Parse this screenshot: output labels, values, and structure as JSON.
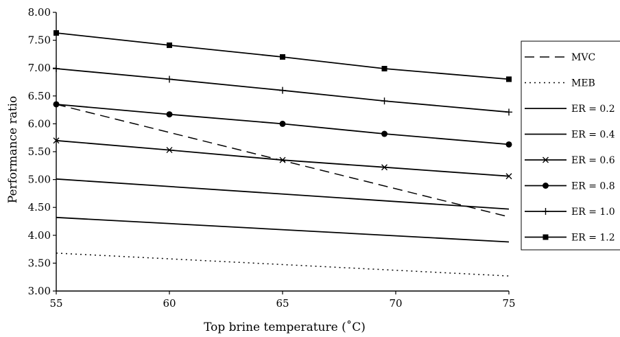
{
  "chart_data": {
    "type": "line",
    "title": "",
    "xlabel": "Top brine temperature (˚C)",
    "ylabel": "Performance ratio",
    "xlim": [
      55,
      75
    ],
    "ylim": [
      3.0,
      8.0
    ],
    "x_ticks": [
      "55",
      "60",
      "65",
      "70",
      "75"
    ],
    "y_ticks": [
      "3.00",
      "3.50",
      "4.00",
      "4.50",
      "5.00",
      "5.50",
      "6.00",
      "6.50",
      "7.00",
      "7.50",
      "8.00"
    ],
    "grid": false,
    "legend_position": "right",
    "series": [
      {
        "name": "MVC",
        "style": "dashed",
        "marker": "none",
        "x": [
          55,
          75
        ],
        "y": [
          6.35,
          4.33
        ]
      },
      {
        "name": "MEB",
        "style": "dotted",
        "marker": "none",
        "x": [
          55,
          75
        ],
        "y": [
          3.68,
          3.27
        ]
      },
      {
        "name": "ER = 0.2",
        "style": "solid",
        "marker": "none",
        "x": [
          55,
          75
        ],
        "y": [
          4.32,
          3.88
        ]
      },
      {
        "name": "ER = 0.4",
        "style": "solid",
        "marker": "none",
        "x": [
          55,
          75
        ],
        "y": [
          5.01,
          4.47
        ]
      },
      {
        "name": "ER = 0.6",
        "style": "solid",
        "marker": "x",
        "x": [
          55,
          60,
          65,
          69.5,
          75
        ],
        "y": [
          5.7,
          5.53,
          5.35,
          5.22,
          5.06
        ]
      },
      {
        "name": "ER = 0.8",
        "style": "solid",
        "marker": "circle",
        "x": [
          55,
          60,
          65,
          69.5,
          75
        ],
        "y": [
          6.35,
          6.17,
          6.0,
          5.82,
          5.63
        ]
      },
      {
        "name": "ER = 1.0",
        "style": "solid",
        "marker": "plus",
        "x": [
          55,
          60,
          65,
          69.5,
          75
        ],
        "y": [
          6.99,
          6.8,
          6.6,
          6.41,
          6.21
        ]
      },
      {
        "name": "ER = 1.2",
        "style": "solid",
        "marker": "square",
        "x": [
          55,
          60,
          65,
          69.5,
          75
        ],
        "y": [
          7.63,
          7.41,
          7.2,
          6.99,
          6.8
        ]
      }
    ],
    "legend_labels": [
      "MVC",
      "MEB",
      "ER = 0.2",
      "ER = 0.4",
      "ER = 0.6",
      "ER = 0.8",
      "ER = 1.0",
      "ER = 1.2"
    ]
  }
}
